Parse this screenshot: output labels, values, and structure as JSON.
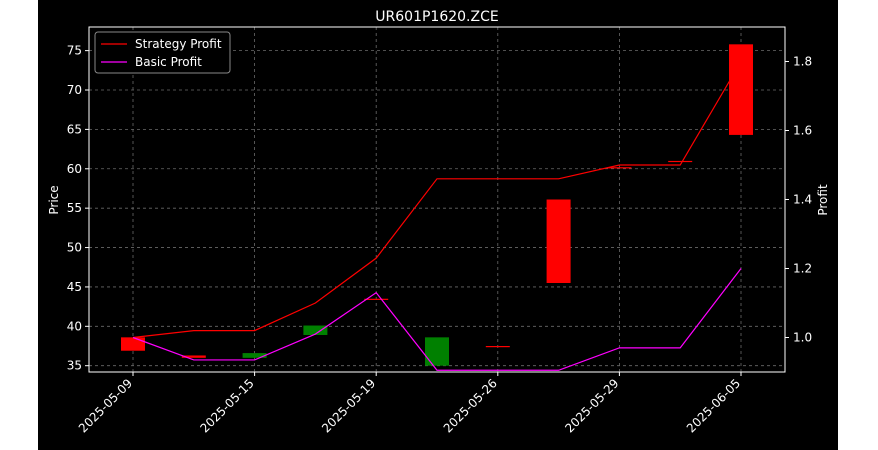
{
  "chart_data": {
    "type": "candlestick+line",
    "title": "UR601P1620.ZCE",
    "ylabel_left": "Price",
    "ylabel_right": "Profit",
    "xlabel": "",
    "ylim_left": [
      34.2,
      78.0
    ],
    "ylim_right": [
      0.9,
      1.9
    ],
    "yticks_left": [
      "35",
      "40",
      "45",
      "50",
      "55",
      "60",
      "65",
      "70",
      "75"
    ],
    "yticks_right": [
      "1.0",
      "1.2",
      "1.4",
      "1.6",
      "1.8"
    ],
    "xticks": [
      "2025-05-09",
      "2025-05-15",
      "2025-05-19",
      "2025-05-26",
      "2025-05-29",
      "2025-06-05"
    ],
    "grid": true,
    "legend_position": "top-left",
    "dates": [
      "2025-05-09",
      "2025-05-12",
      "2025-05-15",
      "2025-05-16",
      "2025-05-19",
      "2025-05-21",
      "2025-05-26",
      "2025-05-27",
      "2025-05-29",
      "2025-06-02",
      "2025-06-05"
    ],
    "candles": [
      {
        "open": 38.6,
        "close": 36.9,
        "color": "#ff0000"
      },
      {
        "open": 36.3,
        "close": 36.0,
        "color": "#ff0000"
      },
      {
        "open": 36.0,
        "close": 36.6,
        "color": "#008000"
      },
      {
        "open": 38.9,
        "close": 40.1,
        "color": "#008000"
      },
      {
        "open": 43.5,
        "close": 43.5,
        "color": "#ff0000"
      },
      {
        "open": 35.0,
        "close": 38.6,
        "color": "#008000"
      },
      {
        "open": 37.5,
        "close": 37.5,
        "color": "#ff0000"
      },
      {
        "open": 56.1,
        "close": 45.5,
        "color": "#ff0000"
      },
      {
        "open": 60.2,
        "close": 60.2,
        "color": "#ff0000"
      },
      {
        "open": 61.0,
        "close": 61.0,
        "color": "#ff0000"
      },
      {
        "open": 75.8,
        "close": 64.3,
        "color": "#ff0000"
      }
    ],
    "series": [
      {
        "name": "Strategy Profit",
        "color": "#ff0000",
        "values": [
          1.0,
          1.02,
          1.02,
          1.1,
          1.23,
          1.46,
          1.46,
          1.46,
          1.5,
          1.5,
          1.8
        ]
      },
      {
        "name": "Basic Profit",
        "color": "#ff00ff",
        "values": [
          1.0,
          0.935,
          0.935,
          1.01,
          1.13,
          0.905,
          0.905,
          0.905,
          0.97,
          0.97,
          1.2
        ]
      }
    ]
  }
}
